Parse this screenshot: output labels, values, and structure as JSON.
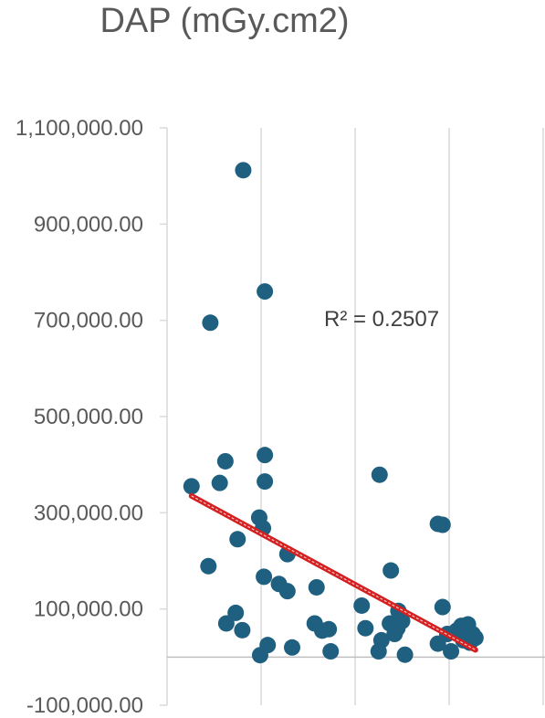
{
  "chart_data": {
    "type": "scatter",
    "title": "DAP (mGy.cm2)",
    "xlabel": "",
    "ylabel": "",
    "ylim": [
      -100000,
      1100000
    ],
    "yticks": [
      -100000,
      100000,
      300000,
      500000,
      700000,
      900000,
      1100000
    ],
    "ytick_labels": [
      "-100,000.00",
      "100,000.00",
      "300,000.00",
      "500,000.00",
      "700,000.00",
      "900,000.00",
      "1,100,000.00"
    ],
    "xlim": [
      0,
      4
    ],
    "grid": true,
    "marker_color": "#1f5f7f",
    "trendline_color": "#d42020",
    "annotation": "R² = 0.2507",
    "trendline": {
      "type": "linear",
      "x": [
        0.26,
        3.28
      ],
      "y": [
        335000,
        15000
      ]
    },
    "series": [
      {
        "points": [
          [
            0.81,
            1012000
          ],
          [
            1.04,
            760000
          ],
          [
            0.46,
            695000
          ],
          [
            1.04,
            420000
          ],
          [
            0.62,
            407000
          ],
          [
            1.04,
            365000
          ],
          [
            0.56,
            362000
          ],
          [
            0.26,
            355000
          ],
          [
            2.26,
            379000
          ],
          [
            0.98,
            290000
          ],
          [
            1.02,
            268000
          ],
          [
            0.75,
            245000
          ],
          [
            1.28,
            214000
          ],
          [
            0.44,
            189000
          ],
          [
            2.38,
            180000
          ],
          [
            1.03,
            167000
          ],
          [
            1.19,
            152000
          ],
          [
            1.28,
            137000
          ],
          [
            1.59,
            145000
          ],
          [
            2.93,
            275000
          ],
          [
            2.88,
            277000
          ],
          [
            0.73,
            92000
          ],
          [
            0.63,
            70000
          ],
          [
            0.8,
            56000
          ],
          [
            1.57,
            70000
          ],
          [
            1.72,
            58000
          ],
          [
            1.65,
            55000
          ],
          [
            2.07,
            107000
          ],
          [
            2.11,
            60000
          ],
          [
            2.46,
            96000
          ],
          [
            2.93,
            104000
          ],
          [
            2.37,
            70000
          ],
          [
            2.45,
            60000
          ],
          [
            2.28,
            35000
          ],
          [
            2.42,
            48000
          ],
          [
            2.5,
            75000
          ],
          [
            3.2,
            68000
          ],
          [
            3.13,
            65000
          ],
          [
            3.08,
            55000
          ],
          [
            3.25,
            48000
          ],
          [
            3.28,
            40000
          ],
          [
            2.98,
            48000
          ],
          [
            2.88,
            28000
          ],
          [
            3.15,
            35000
          ],
          [
            3.22,
            30000
          ],
          [
            1.07,
            25000
          ],
          [
            1.33,
            20000
          ],
          [
            2.25,
            12000
          ],
          [
            1.74,
            12000
          ],
          [
            0.99,
            4000
          ],
          [
            2.53,
            5000
          ],
          [
            3.02,
            12000
          ]
        ]
      }
    ]
  }
}
